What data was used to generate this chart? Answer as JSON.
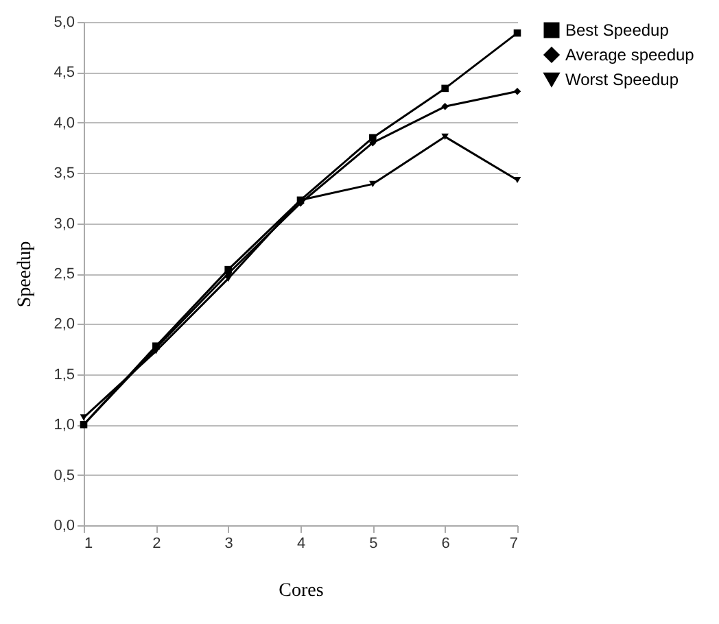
{
  "chart_data": {
    "type": "line",
    "xlabel": "Cores",
    "ylabel": "Speedup",
    "x": [
      1,
      2,
      3,
      4,
      5,
      6,
      7
    ],
    "series": [
      {
        "name": "Best Speedup",
        "color": "#000000",
        "marker": "square",
        "values": [
          1.0,
          1.78,
          2.54,
          3.23,
          3.85,
          4.34,
          4.89
        ]
      },
      {
        "name": "Average speedup",
        "color": "#000000",
        "marker": "diamond",
        "values": [
          1.0,
          1.76,
          2.5,
          3.2,
          3.8,
          4.16,
          4.31
        ]
      },
      {
        "name": "Worst Speedup",
        "color": "#000000",
        "marker": "triangle",
        "values": [
          1.07,
          1.73,
          2.45,
          3.23,
          3.39,
          3.86,
          3.43
        ]
      }
    ],
    "xlim": [
      1,
      7
    ],
    "xticks": [
      1,
      2,
      3,
      4,
      5,
      6,
      7
    ],
    "ylim": [
      0,
      5
    ],
    "yticks": [
      {
        "value": 0,
        "label": "0,0"
      },
      {
        "value": 0.5,
        "label": "0,5"
      },
      {
        "value": 1,
        "label": "1,0"
      },
      {
        "value": 1.5,
        "label": "1,5"
      },
      {
        "value": 2,
        "label": "2,0"
      },
      {
        "value": 2.5,
        "label": "2,5"
      },
      {
        "value": 3,
        "label": "3,0"
      },
      {
        "value": 3.5,
        "label": "3,5"
      },
      {
        "value": 4,
        "label": "4,0"
      },
      {
        "value": 4.5,
        "label": "4,5"
      },
      {
        "value": 5,
        "label": "5,0"
      }
    ],
    "grid": "y",
    "legend": "right",
    "line_style": "solid"
  }
}
